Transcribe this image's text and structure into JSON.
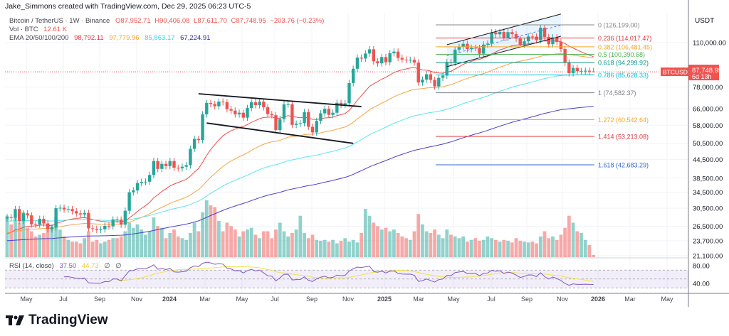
{
  "header": {
    "attribution": "Jake_Simmons created with TradingView.com, Dec 29, 2025 06:23 UTC-5"
  },
  "legend": {
    "symbol": "Bitcoin / TetherUS · 1W · Binance",
    "open": "O87,952.71",
    "high": "H90,406.08",
    "low": "L87,611.70",
    "close": "C87,748.95",
    "change": "−203.76 (−0.23%)",
    "vol_label": "Vol · BTC",
    "vol_value": "12.61 K",
    "ema_label": "EMA 20/50/100/200",
    "ema20": "98,792.11",
    "ema50": "97,779.96",
    "ema100": "85,863.17",
    "ema200": "67,224.91",
    "rsi_label": "RSI (14, close)",
    "rsi_value": "37.50",
    "rsi_ma": "44.73",
    "rsi_extra1": "∅",
    "rsi_extra2": "∅"
  },
  "colors": {
    "up": "#26a69a",
    "down": "#ef5350",
    "ema20": "#f04a4a",
    "ema50": "#f6a345",
    "ema100": "#5fe3ef",
    "ema200": "#4a3fc8",
    "rsi": "#7e57c2",
    "rsi_ma": "#f0e14a"
  },
  "price_axis": {
    "currency": "USDT",
    "labels": [
      "110,000.00",
      "78,000.00",
      "66,000.00",
      "58,000.00",
      "50,500.00",
      "44,500.00",
      "38,500.00",
      "34,500.00",
      "30,500.00",
      "26,500.00",
      "23,700.00",
      "21,100.00"
    ],
    "last_symbol": "BTCUSDT",
    "last_price": "87,748.95",
    "countdown": "6d 13h"
  },
  "rsi_axis": {
    "labels": [
      "80.00",
      "40.00"
    ]
  },
  "time_axis": {
    "labels": [
      "May",
      "Jul",
      "Sep",
      "Nov",
      "2024",
      "Mar",
      "May",
      "Jul",
      "Sep",
      "Nov",
      "2025",
      "Mar",
      "May",
      "Jul",
      "Sep",
      "Nov",
      "2026",
      "Mar",
      "May"
    ]
  },
  "fib_levels": [
    {
      "label": "0 (126,199.00)",
      "value": 126199,
      "color": "#888888"
    },
    {
      "label": "0.236 (114,017.47)",
      "value": 114017.47,
      "color": "#e0353d"
    },
    {
      "label": "0.382 (106,481.45)",
      "value": 106481.45,
      "color": "#f5a623"
    },
    {
      "label": "0.5 (100,390.68)",
      "value": 100390.68,
      "color": "#4caf50"
    },
    {
      "label": "0.618 (94,299.92)",
      "value": 94299.92,
      "color": "#089981"
    },
    {
      "label": "0.786 (85,628.33)",
      "value": 85628.33,
      "color": "#00bcd4"
    },
    {
      "label": "1 (74,582.37)",
      "value": 74582.37,
      "color": "#787b86"
    },
    {
      "label": "1.272 (60,542.64)",
      "value": 60542.64,
      "color": "#f5a623"
    },
    {
      "label": "1.414 (53,213.08)",
      "value": 53213.08,
      "color": "#e0353d"
    },
    {
      "label": "1.618 (42,683.29)",
      "value": 42683.29,
      "color": "#3366cc"
    }
  ],
  "chart_data": {
    "type": "candlestick",
    "interval": "1W",
    "scale": "log",
    "last_candle": {
      "open": 87952.71,
      "high": 90406.08,
      "low": 87611.7,
      "close": 87748.95,
      "volume_k": 12.61
    },
    "ylim": [
      21100,
      126199
    ],
    "dates": [
      "2023-03-27",
      "2023-04-03",
      "2023-04-10",
      "2023-04-17",
      "2023-04-24",
      "2023-05-01",
      "2023-05-08",
      "2023-05-15",
      "2023-05-22",
      "2023-05-29",
      "2023-06-05",
      "2023-06-12",
      "2023-06-19",
      "2023-06-26",
      "2023-07-03",
      "2023-07-10",
      "2023-07-17",
      "2023-07-24",
      "2023-07-31",
      "2023-08-07",
      "2023-08-14",
      "2023-08-21",
      "2023-08-28",
      "2023-09-04",
      "2023-09-11",
      "2023-09-18",
      "2023-09-25",
      "2023-10-02",
      "2023-10-09",
      "2023-10-16",
      "2023-10-23",
      "2023-10-30",
      "2023-11-06",
      "2023-11-13",
      "2023-11-20",
      "2023-11-27",
      "2023-12-04",
      "2023-12-11",
      "2023-12-18",
      "2023-12-25",
      "2024-01-01",
      "2024-01-08",
      "2024-01-15",
      "2024-01-22",
      "2024-01-29",
      "2024-02-05",
      "2024-02-12",
      "2024-02-19",
      "2024-02-26",
      "2024-03-04",
      "2024-03-11",
      "2024-03-18",
      "2024-03-25",
      "2024-04-01",
      "2024-04-08",
      "2024-04-15",
      "2024-04-22",
      "2024-04-29",
      "2024-05-06",
      "2024-05-13",
      "2024-05-20",
      "2024-05-27",
      "2024-06-03",
      "2024-06-10",
      "2024-06-17",
      "2024-06-24",
      "2024-07-01",
      "2024-07-08",
      "2024-07-15",
      "2024-07-22",
      "2024-07-29",
      "2024-08-05",
      "2024-08-12",
      "2024-08-19",
      "2024-08-26",
      "2024-09-02",
      "2024-09-09",
      "2024-09-16",
      "2024-09-23",
      "2024-09-30",
      "2024-10-07",
      "2024-10-14",
      "2024-10-21",
      "2024-10-28",
      "2024-11-04",
      "2024-11-11",
      "2024-11-18",
      "2024-11-25",
      "2024-12-02",
      "2024-12-09",
      "2024-12-16",
      "2024-12-23",
      "2024-12-30",
      "2025-01-06",
      "2025-01-13",
      "2025-01-20",
      "2025-01-27",
      "2025-02-03",
      "2025-02-10",
      "2025-02-17",
      "2025-02-24",
      "2025-03-03",
      "2025-03-10",
      "2025-03-17",
      "2025-03-24",
      "2025-03-31",
      "2025-04-07",
      "2025-04-14",
      "2025-04-21",
      "2025-04-28",
      "2025-05-05",
      "2025-05-12",
      "2025-05-19",
      "2025-05-26",
      "2025-06-02",
      "2025-06-09",
      "2025-06-16",
      "2025-06-23",
      "2025-06-30",
      "2025-07-07",
      "2025-07-14",
      "2025-07-21",
      "2025-07-28",
      "2025-08-04",
      "2025-08-11",
      "2025-08-18",
      "2025-08-25",
      "2025-09-01",
      "2025-09-08",
      "2025-09-15",
      "2025-09-22",
      "2025-09-29",
      "2025-10-06",
      "2025-10-13",
      "2025-10-20",
      "2025-10-27",
      "2025-11-03",
      "2025-11-10",
      "2025-11-17",
      "2025-11-24",
      "2025-12-01",
      "2025-12-08",
      "2025-12-15",
      "2025-12-22",
      "2025-12-29"
    ],
    "close": [
      28450,
      28300,
      30300,
      27600,
      29300,
      28850,
      26900,
      26850,
      28100,
      27100,
      25900,
      26300,
      30500,
      30600,
      30200,
      30300,
      29800,
      29300,
      29050,
      29400,
      26100,
      26000,
      25800,
      25900,
      26600,
      26500,
      27950,
      27900,
      26850,
      29900,
      34500,
      35000,
      37050,
      37400,
      37450,
      39450,
      43950,
      41350,
      43000,
      42250,
      43950,
      41700,
      41550,
      42050,
      42550,
      48300,
      52150,
      51700,
      63100,
      68950,
      68350,
      67200,
      69650,
      69300,
      65700,
      64950,
      63100,
      63900,
      61500,
      66250,
      69300,
      67750,
      69650,
      66650,
      63200,
      62700,
      55850,
      60800,
      68150,
      68250,
      58150,
      58700,
      58950,
      64200,
      57300,
      54850,
      59950,
      63600,
      65850,
      62850,
      63900,
      69000,
      67950,
      68750,
      80400,
      89850,
      97950,
      97250,
      101100,
      104450,
      95200,
      93700,
      98350,
      94500,
      101300,
      102600,
      97700,
      96450,
      96150,
      96250,
      94250,
      80750,
      82600,
      86100,
      82400,
      78350,
      83750,
      85200,
      94650,
      94250,
      104150,
      106450,
      109000,
      104650,
      105700,
      105550,
      100950,
      108350,
      109200,
      119100,
      117300,
      119450,
      114200,
      119300,
      117450,
      113500,
      108250,
      111150,
      115350,
      115250,
      112150,
      123500,
      114950,
      108650,
      114550,
      110550,
      104700,
      94200,
      86800,
      90400,
      88200,
      88200,
      88500,
      87952.71,
      87748.95
    ],
    "volume_k": [
      240,
      190,
      230,
      200,
      260,
      170,
      150,
      120,
      130,
      140,
      160,
      180,
      230,
      160,
      120,
      100,
      90,
      90,
      80,
      110,
      150,
      90,
      100,
      80,
      90,
      100,
      110,
      110,
      120,
      150,
      200,
      170,
      190,
      160,
      130,
      150,
      230,
      180,
      170,
      110,
      140,
      160,
      120,
      110,
      100,
      140,
      200,
      150,
      260,
      330,
      300,
      290,
      210,
      150,
      200,
      180,
      160,
      120,
      150,
      160,
      170,
      130,
      110,
      150,
      150,
      110,
      160,
      200,
      150,
      120,
      140,
      160,
      240,
      140,
      110,
      130,
      100,
      95,
      100,
      90,
      100,
      80,
      95,
      110,
      90,
      100,
      85,
      140,
      280,
      240,
      200,
      180,
      160,
      170,
      150,
      160,
      140,
      120,
      110,
      100,
      150,
      250,
      190,
      150,
      140,
      160,
      130,
      110,
      160,
      130,
      120,
      110,
      120,
      90,
      100,
      110,
      95,
      100,
      120,
      110,
      100,
      90,
      100,
      95,
      85,
      110,
      95,
      90,
      85,
      90,
      80,
      120,
      150,
      110,
      120,
      100,
      130,
      170,
      240,
      200,
      150,
      140,
      100,
      70,
      12.61
    ],
    "ema_periods": [
      20,
      50,
      100,
      200
    ],
    "rsi": {
      "period": 14,
      "ma_period": 14,
      "upper": 70,
      "middle": 50,
      "lower": 30
    },
    "trendlines": [
      {
        "name": "flag-upper",
        "from": [
          "2024-02-19",
          74000
        ],
        "to": [
          "2024-11-25",
          67000
        ],
        "color": "#131722"
      },
      {
        "name": "flag-lower",
        "from": [
          "2024-03-04",
          59000
        ],
        "to": [
          "2024-11-11",
          50400
        ],
        "color": "#131722"
      },
      {
        "name": "channel-upper",
        "from": [
          "2025-04-21",
          108200
        ],
        "to": [
          "2025-11-03",
          137300
        ],
        "color": "#131722"
      },
      {
        "name": "channel-lower",
        "from": [
          "2025-04-21",
          91300
        ],
        "to": [
          "2025-11-03",
          115600
        ],
        "color": "#131722"
      }
    ]
  }
}
